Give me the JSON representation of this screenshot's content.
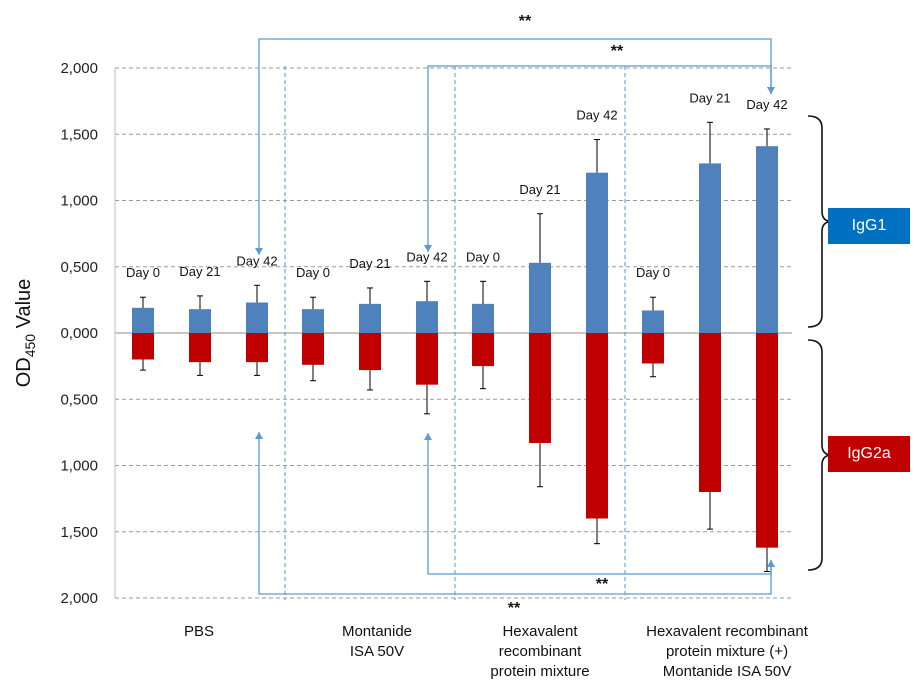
{
  "chart_data": {
    "type": "bar",
    "ylabel_main": "OD",
    "ylabel_sub": "450",
    "ylabel_tail": " Value",
    "ytick_labels": [
      "2,000",
      "1,500",
      "1,000",
      "0,500",
      "0,000",
      "0,500",
      "1,000",
      "1,500",
      "2,000"
    ],
    "ylim": [
      -2.0,
      2.0
    ],
    "grid": true,
    "groups": [
      {
        "label_lines": [
          "PBS"
        ]
      },
      {
        "label_lines": [
          "Montanide",
          "ISA 50V"
        ]
      },
      {
        "label_lines": [
          "Hexavalent",
          "recombinant",
          "protein mixture"
        ]
      },
      {
        "label_lines": [
          "Hexavalent recombinant",
          "protein mixture (+)",
          "Montanide ISA 50V"
        ]
      }
    ],
    "bars": [
      {
        "group": 0,
        "day": "Day 0",
        "igg1": 0.19,
        "igg1_err": 0.08,
        "igg2a": 0.2,
        "igg2a_err": 0.08
      },
      {
        "group": 0,
        "day": "Day 21",
        "igg1": 0.18,
        "igg1_err": 0.1,
        "igg2a": 0.22,
        "igg2a_err": 0.1
      },
      {
        "group": 0,
        "day": "Day 42",
        "igg1": 0.23,
        "igg1_err": 0.13,
        "igg2a": 0.22,
        "igg2a_err": 0.1
      },
      {
        "group": 1,
        "day": "Day 0",
        "igg1": 0.18,
        "igg1_err": 0.09,
        "igg2a": 0.24,
        "igg2a_err": 0.12
      },
      {
        "group": 1,
        "day": "Day 21",
        "igg1": 0.22,
        "igg1_err": 0.12,
        "igg2a": 0.28,
        "igg2a_err": 0.15
      },
      {
        "group": 1,
        "day": "Day 42",
        "igg1": 0.24,
        "igg1_err": 0.15,
        "igg2a": 0.39,
        "igg2a_err": 0.22
      },
      {
        "group": 2,
        "day": "Day 0",
        "igg1": 0.22,
        "igg1_err": 0.17,
        "igg2a": 0.25,
        "igg2a_err": 0.17
      },
      {
        "group": 2,
        "day": "Day 21",
        "igg1": 0.53,
        "igg1_err": 0.37,
        "igg2a": 0.83,
        "igg2a_err": 0.33
      },
      {
        "group": 2,
        "day": "Day 42",
        "igg1": 1.21,
        "igg1_err": 0.25,
        "igg2a": 1.4,
        "igg2a_err": 0.19
      },
      {
        "group": 3,
        "day": "Day 0",
        "igg1": 0.17,
        "igg1_err": 0.1,
        "igg2a": 0.23,
        "igg2a_err": 0.1
      },
      {
        "group": 3,
        "day": "Day 21",
        "igg1": 1.28,
        "igg1_err": 0.31,
        "igg2a": 1.2,
        "igg2a_err": 0.28
      },
      {
        "group": 3,
        "day": "Day 42",
        "igg1": 1.41,
        "igg1_err": 0.13,
        "igg2a": 1.62,
        "igg2a_err": 0.18
      }
    ],
    "series": [
      {
        "name": "IgG1",
        "color": "#4f81bd"
      },
      {
        "name": "IgG2a",
        "color": "#c00000"
      }
    ],
    "significance_marker": "**",
    "significance": [
      {
        "from_bar": 2,
        "to_bar": 11,
        "series": "IgG1"
      },
      {
        "from_bar": 5,
        "to_bar": 11,
        "series": "IgG1"
      },
      {
        "from_bar": 5,
        "to_bar": 11,
        "series": "IgG2a"
      },
      {
        "from_bar": 2,
        "to_bar": 11,
        "series": "IgG2a"
      }
    ]
  },
  "legend": {
    "igg1_label": "IgG1",
    "igg1_color": "#0070c0",
    "igg2a_label": "IgG2a",
    "igg2a_color": "#c00000"
  }
}
